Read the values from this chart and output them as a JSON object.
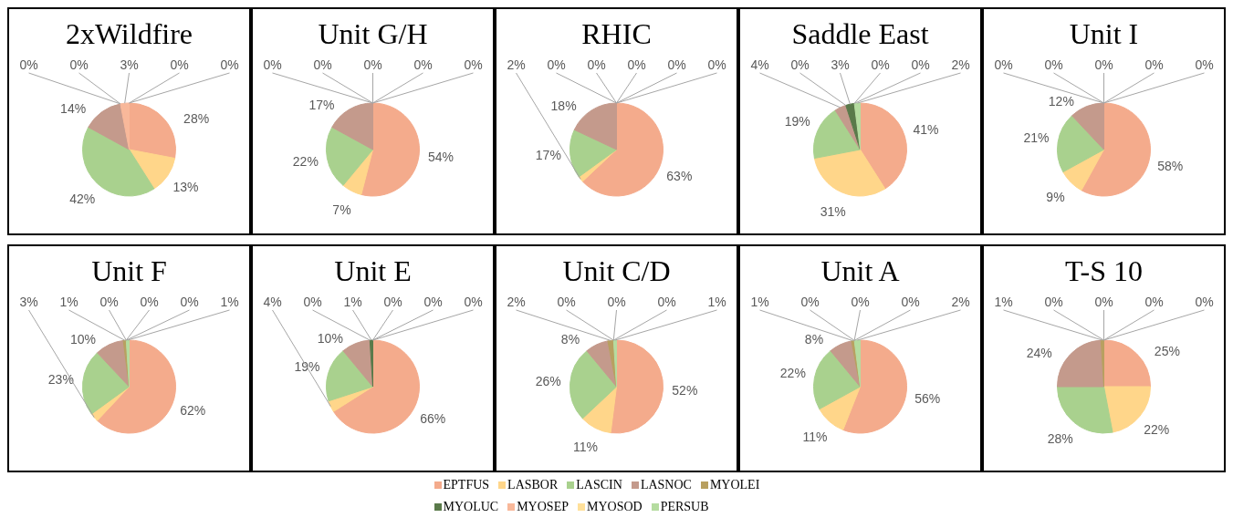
{
  "chart_data": [
    {
      "type": "pie",
      "title": "2xWildfire",
      "categories": [
        "EPTFUS",
        "LASBOR",
        "LASCIN",
        "LASNOC",
        "MYOLEI",
        "MYOLUC",
        "MYOSEP",
        "MYOSOD",
        "PERSUB"
      ],
      "colors": [
        "#f4ab8c",
        "#ffd68a",
        "#a9d18e",
        "#c49a8c",
        "#b8a060",
        "#5a7a4a",
        "#f8b89a",
        "#ffe09a",
        "#b5dca0"
      ],
      "values": [
        28,
        13,
        42,
        14,
        0,
        0,
        3,
        0,
        0
      ],
      "value_labels": [
        "28%",
        "13%",
        "42%",
        "14%",
        "0%",
        "0%",
        "3%",
        "0%",
        "0%"
      ],
      "legend": "bottom"
    },
    {
      "type": "pie",
      "title": "Unit G/H",
      "categories": [
        null,
        null,
        null,
        null,
        null,
        null,
        null,
        null,
        null
      ],
      "colors": [
        "#f4ab8c",
        "#ffd68a",
        "#a9d18e",
        "#c49a8c",
        "#b8a060",
        "#5a7a4a",
        "#f8b89a",
        "#ffe09a",
        "#b5dca0"
      ],
      "values": [
        54,
        7,
        22,
        17,
        0,
        0,
        0,
        0,
        0
      ],
      "value_labels": [
        "54%",
        "7%",
        "22%",
        "17%",
        "0%",
        "0%",
        "0%",
        "0%",
        "0%"
      ]
    },
    {
      "type": "pie",
      "title": "RHIC",
      "categories": [
        null,
        null,
        null,
        null,
        null,
        null,
        null,
        null,
        null
      ],
      "colors": [
        "#f4ab8c",
        "#ffd68a",
        "#a9d18e",
        "#c49a8c",
        "#b8a060",
        "#5a7a4a",
        "#f8b89a",
        "#ffe09a",
        "#b5dca0"
      ],
      "values": [
        63,
        2,
        17,
        18,
        0,
        0,
        0,
        0,
        0
      ],
      "value_labels": [
        "63%",
        "2%",
        "17%",
        "18%",
        "0%",
        "0%",
        "0%",
        "0%",
        "0%"
      ]
    },
    {
      "type": "pie",
      "title": "Saddle East",
      "categories": [
        null,
        null,
        null,
        null,
        null,
        null,
        null,
        null,
        null
      ],
      "colors": [
        "#f4ab8c",
        "#ffd68a",
        "#a9d18e",
        "#c49a8c",
        "#b8a060",
        "#5a7a4a",
        "#f8b89a",
        "#ffe09a",
        "#b5dca0"
      ],
      "values": [
        41,
        31,
        19,
        4,
        0,
        3,
        0,
        0,
        2
      ],
      "value_labels": [
        "41%",
        "31%",
        "19%",
        "4%",
        "0%",
        "3%",
        "0%",
        "0%",
        "2%"
      ]
    },
    {
      "type": "pie",
      "title": "Unit I",
      "categories": [
        null,
        null,
        null,
        null,
        null,
        null,
        null,
        null,
        null
      ],
      "colors": [
        "#f4ab8c",
        "#ffd68a",
        "#a9d18e",
        "#c49a8c",
        "#b8a060",
        "#5a7a4a",
        "#f8b89a",
        "#ffe09a",
        "#b5dca0"
      ],
      "values": [
        58,
        9,
        21,
        12,
        0,
        0,
        0,
        0,
        0
      ],
      "value_labels": [
        "58%",
        "9%",
        "21%",
        "12%",
        "0%",
        "0%",
        "0%",
        "0%",
        "0%"
      ]
    },
    {
      "type": "pie",
      "title": "Unit F",
      "categories": [
        null,
        null,
        null,
        null,
        null,
        null,
        null,
        null,
        null
      ],
      "colors": [
        "#f4ab8c",
        "#ffd68a",
        "#a9d18e",
        "#c49a8c",
        "#b8a060",
        "#5a7a4a",
        "#f8b89a",
        "#ffe09a",
        "#b5dca0"
      ],
      "values": [
        62,
        3,
        23,
        10,
        1,
        0,
        0,
        0,
        1
      ],
      "value_labels": [
        "62%",
        "3%",
        "23%",
        "10%",
        "1%",
        "0%",
        "0%",
        "0%",
        "1%"
      ]
    },
    {
      "type": "pie",
      "title": "Unit E",
      "categories": [
        null,
        null,
        null,
        null,
        null,
        null,
        null,
        null,
        null
      ],
      "colors": [
        "#f4ab8c",
        "#ffd68a",
        "#a9d18e",
        "#c49a8c",
        "#b8a060",
        "#5a7a4a",
        "#f8b89a",
        "#ffe09a",
        "#b5dca0"
      ],
      "values": [
        66,
        4,
        19,
        10,
        0,
        1,
        0,
        0,
        0
      ],
      "value_labels": [
        "66%",
        "4%",
        "19%",
        "10%",
        "0%",
        "1%",
        "0%",
        "0%",
        "0%"
      ]
    },
    {
      "type": "pie",
      "title": "Unit C/D",
      "categories": [
        null,
        null,
        null,
        null,
        null,
        null,
        null,
        null,
        null
      ],
      "colors": [
        "#f4ab8c",
        "#ffd68a",
        "#a9d18e",
        "#c49a8c",
        "#b8a060",
        "#5a7a4a",
        "#f8b89a",
        "#ffe09a",
        "#b5dca0"
      ],
      "values": [
        52,
        11,
        26,
        8,
        2,
        0,
        0,
        0,
        1
      ],
      "value_labels": [
        "52%",
        "11%",
        "26%",
        "8%",
        "2%",
        "0%",
        "0%",
        "0%",
        "1%"
      ]
    },
    {
      "type": "pie",
      "title": "Unit A",
      "categories": [
        null,
        null,
        null,
        null,
        null,
        null,
        null,
        null,
        null
      ],
      "colors": [
        "#f4ab8c",
        "#ffd68a",
        "#a9d18e",
        "#c49a8c",
        "#b8a060",
        "#5a7a4a",
        "#f8b89a",
        "#ffe09a",
        "#b5dca0"
      ],
      "values": [
        56,
        11,
        22,
        8,
        1,
        0,
        0,
        0,
        2
      ],
      "value_labels": [
        "56%",
        "11%",
        "22%",
        "8%",
        "1%",
        "0%",
        "0%",
        "0%",
        "2%"
      ]
    },
    {
      "type": "pie",
      "title": "T-S 10",
      "categories": [
        null,
        null,
        null,
        null,
        null,
        null,
        null,
        null,
        null
      ],
      "colors": [
        "#f4ab8c",
        "#ffd68a",
        "#a9d18e",
        "#c49a8c",
        "#b8a060",
        "#5a7a4a",
        "#f8b89a",
        "#ffe09a",
        "#b5dca0"
      ],
      "values": [
        25,
        22,
        28,
        24,
        1,
        0,
        0,
        0,
        0
      ],
      "value_labels": [
        "25%",
        "22%",
        "28%",
        "24%",
        "1%",
        "0%",
        "0%",
        "0%",
        "0%"
      ]
    }
  ]
}
